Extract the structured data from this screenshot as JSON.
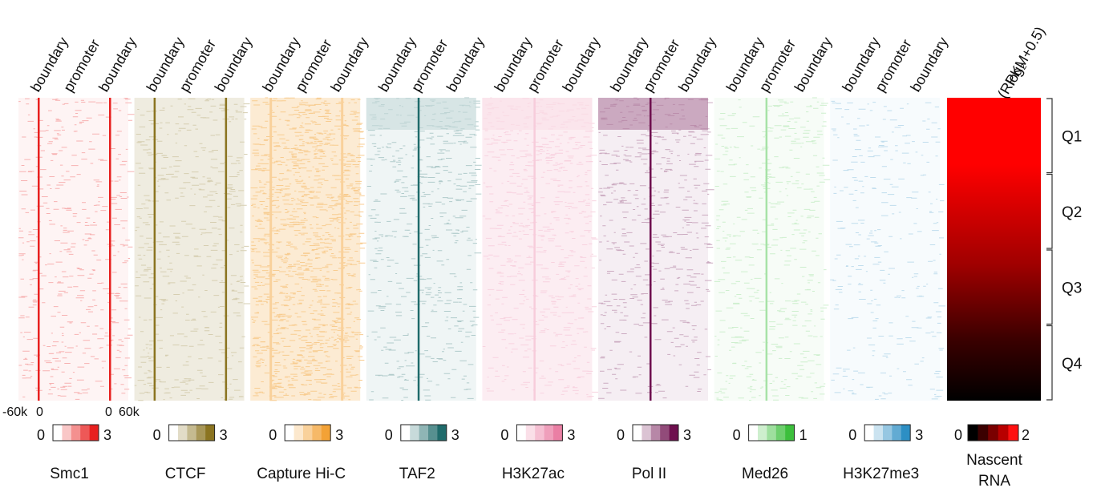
{
  "chart_data": {
    "type": "heatmap",
    "colorbar_title_line1": "log₂",
    "colorbar_title_line2": "(RPKM+0.5)",
    "x_tick_labels": {
      "left": "-60k",
      "zero_left": "0",
      "zero_right": "0",
      "right": "60k"
    },
    "top_labels": [
      "boundary",
      "promoter",
      "boundary"
    ],
    "quartiles": [
      "Q1",
      "Q2",
      "Q3",
      "Q4"
    ],
    "panels": [
      {
        "name": "Smc1",
        "color": "#e8201f",
        "scale": [
          "0",
          "3"
        ],
        "profile": "boundary"
      },
      {
        "name": "CTCF",
        "color": "#8b7420",
        "scale": [
          "0",
          "3"
        ],
        "profile": "boundary"
      },
      {
        "name": "Capture Hi-C",
        "color": "#f3a236",
        "scale": [
          "0",
          "3"
        ],
        "profile": "broad"
      },
      {
        "name": "TAF2",
        "color": "#1f6b6b",
        "scale": [
          "0",
          "3"
        ],
        "profile": "promoter"
      },
      {
        "name": "H3K27ac",
        "color": "#ea7fa4",
        "scale": [
          "0",
          "3"
        ],
        "profile": "promoter-broad"
      },
      {
        "name": "Pol II",
        "color": "#6e0f4e",
        "scale": [
          "0",
          "3"
        ],
        "profile": "promoter"
      },
      {
        "name": "Med26",
        "color": "#3cbf3c",
        "scale": [
          "0",
          "1"
        ],
        "profile": "promoter-weak"
      },
      {
        "name": "H3K27me3",
        "color": "#2d8fc4",
        "scale": [
          "0",
          "3"
        ],
        "profile": "flat"
      }
    ],
    "nascent_rna": {
      "name_line1": "Nascent",
      "name_line2": "RNA",
      "scale": [
        "0",
        "2"
      ],
      "colors": [
        "#000000",
        "#ff0000"
      ]
    }
  }
}
